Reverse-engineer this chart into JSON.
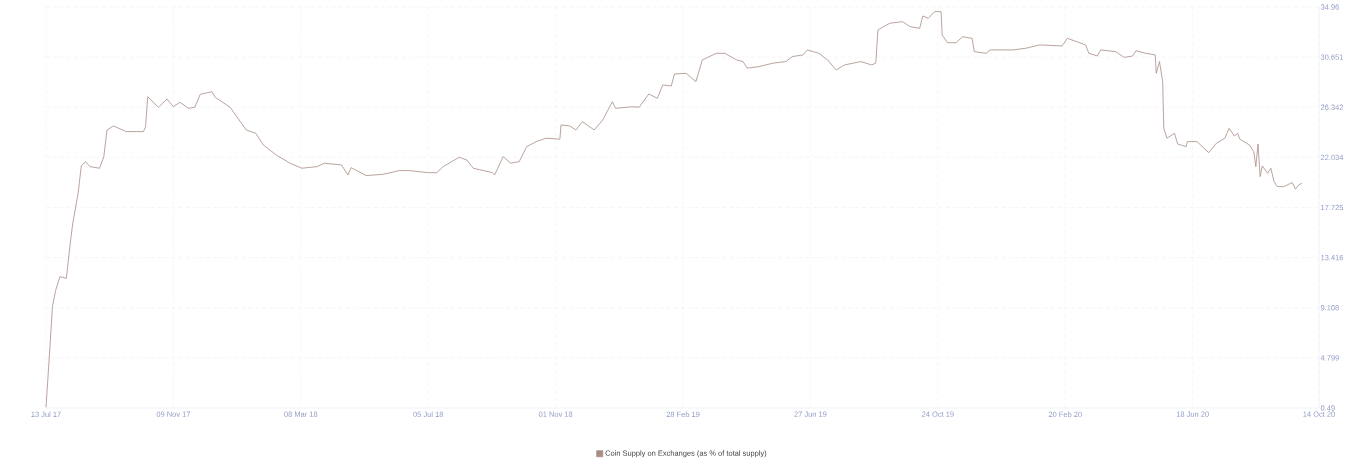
{
  "chart_data": {
    "type": "line",
    "x": [
      "2017-07-13",
      "2017-07-17",
      "2017-07-19",
      "2017-07-22",
      "2017-07-26",
      "2017-08-01",
      "2017-08-05",
      "2017-08-07",
      "2017-08-12",
      "2017-08-15",
      "2017-08-19",
      "2017-08-23",
      "2017-09-01",
      "2017-09-05",
      "2017-09-08",
      "2017-09-14",
      "2017-09-26",
      "2017-10-12",
      "2017-10-14",
      "2017-10-16",
      "2017-10-26",
      "2017-11-03",
      "2017-11-09",
      "2017-11-15",
      "2017-11-23",
      "2017-11-29",
      "2017-12-04",
      "2017-12-15",
      "2017-12-18",
      "2018-01-01",
      "2018-01-16",
      "2018-01-25",
      "2018-02-01",
      "2018-02-13",
      "2018-02-26",
      "2018-03-09",
      "2018-03-23",
      "2018-03-30",
      "2018-04-15",
      "2018-04-21",
      "2018-04-24",
      "2018-05-08",
      "2018-05-24",
      "2018-06-08",
      "2018-06-17",
      "2018-07-05",
      "2018-07-13",
      "2018-07-19",
      "2018-08-03",
      "2018-08-10",
      "2018-08-16",
      "2018-09-03",
      "2018-09-05",
      "2018-09-13",
      "2018-09-20",
      "2018-09-28",
      "2018-10-05",
      "2018-10-14",
      "2018-10-23",
      "2018-11-05",
      "2018-11-06",
      "2018-11-14",
      "2018-11-20",
      "2018-11-26",
      "2018-12-07",
      "2018-12-15",
      "2018-12-24",
      "2018-12-27",
      "2019-01-12",
      "2019-01-18",
      "2019-01-27",
      "2019-02-04",
      "2019-02-09",
      "2019-02-17",
      "2019-02-20",
      "2019-03-03",
      "2019-03-12",
      "2019-03-18",
      "2019-03-31",
      "2019-04-08",
      "2019-04-19",
      "2019-04-25",
      "2019-04-29",
      "2019-05-10",
      "2019-05-23",
      "2019-06-04",
      "2019-06-10",
      "2019-06-20",
      "2019-06-24",
      "2019-07-05",
      "2019-07-13",
      "2019-07-21",
      "2019-07-29",
      "2019-08-13",
      "2019-08-23",
      "2019-08-27",
      "2019-08-29",
      "2019-09-06",
      "2019-09-09",
      "2019-09-21",
      "2019-09-28",
      "2019-10-07",
      "2019-10-10",
      "2019-10-15",
      "2019-10-21",
      "2019-10-27",
      "2019-10-28",
      "2019-11-02",
      "2019-11-10",
      "2019-11-16",
      "2019-11-25",
      "2019-11-27",
      "2019-12-08",
      "2019-12-12",
      "2020-01-02",
      "2020-01-14",
      "2020-01-27",
      "2020-02-17",
      "2020-02-22",
      "2020-03-10",
      "2020-03-13",
      "2020-03-21",
      "2020-03-24",
      "2020-04-07",
      "2020-04-15",
      "2020-04-23",
      "2020-04-26",
      "2020-05-05",
      "2020-05-14",
      "2020-05-15",
      "2020-05-18",
      "2020-05-21",
      "2020-05-22",
      "2020-05-25",
      "2020-06-01",
      "2020-06-04",
      "2020-06-12",
      "2020-06-13",
      "2020-06-22",
      "2020-07-03",
      "2020-07-10",
      "2020-07-18",
      "2020-07-22",
      "2020-07-27",
      "2020-07-30",
      "2020-08-01",
      "2020-08-10",
      "2020-08-14",
      "2020-08-16",
      "2020-08-18",
      "2020-08-20",
      "2020-08-22",
      "2020-08-27",
      "2020-08-30",
      "2020-09-02",
      "2020-09-05",
      "2020-09-11",
      "2020-09-19",
      "2020-09-22",
      "2020-09-25",
      "2020-09-28"
    ],
    "series": [
      {
        "name": "Coin Supply on Exchanges (as % of total supply)",
        "color": "#a88d84",
        "values": [
          0.55,
          6.19,
          9.2,
          10.6,
          11.78,
          11.64,
          14.93,
          16.37,
          18.95,
          21.32,
          21.66,
          21.24,
          21.1,
          22.1,
          24.39,
          24.73,
          24.25,
          24.25,
          24.67,
          27.25,
          26.34,
          27.05,
          26.39,
          26.77,
          26.25,
          26.34,
          27.45,
          27.68,
          27.2,
          26.34,
          24.39,
          24.1,
          23.1,
          22.24,
          21.53,
          21.1,
          21.24,
          21.53,
          21.38,
          20.52,
          21.15,
          20.47,
          20.58,
          20.9,
          20.9,
          20.72,
          20.72,
          21.24,
          22.05,
          21.81,
          21.1,
          20.72,
          20.52,
          22.1,
          21.53,
          21.67,
          22.96,
          23.39,
          23.68,
          23.6,
          24.82,
          24.73,
          24.39,
          25.1,
          24.39,
          25.25,
          26.82,
          26.25,
          26.39,
          26.34,
          27.48,
          27.11,
          28.26,
          28.17,
          29.2,
          29.26,
          28.54,
          30.41,
          30.98,
          30.98,
          30.41,
          30.27,
          29.7,
          29.84,
          30.13,
          30.27,
          30.7,
          30.84,
          31.27,
          30.98,
          30.41,
          29.55,
          29.98,
          30.27,
          29.98,
          30.13,
          32.98,
          33.41,
          33.56,
          33.7,
          33.27,
          33.13,
          34.19,
          33.99,
          34.56,
          34.56,
          32.55,
          31.89,
          31.89,
          32.4,
          32.27,
          31.12,
          30.98,
          31.27,
          31.27,
          31.41,
          31.7,
          31.61,
          32.27,
          31.7,
          30.98,
          30.75,
          31.27,
          31.12,
          30.63,
          30.75,
          31.2,
          30.98,
          30.84,
          29.26,
          30.27,
          28.54,
          24.53,
          23.68,
          24.1,
          23.18,
          22.96,
          23.39,
          23.39,
          22.44,
          23.24,
          23.68,
          24.53,
          23.87,
          24.1,
          23.6,
          23.1,
          22.53,
          21.24,
          23.18,
          20.38,
          21.3,
          20.67,
          21.1,
          19.95,
          19.52,
          19.52,
          19.87,
          19.3,
          19.66,
          19.81
        ]
      }
    ],
    "xlim": [
      "2017-07-13",
      "2020-10-14"
    ],
    "xticks": [
      {
        "value": "2017-07-13",
        "label": "13 Jul 17"
      },
      {
        "value": "2017-11-09",
        "label": "09 Nov 17"
      },
      {
        "value": "2018-03-08",
        "label": "08 Mar 18"
      },
      {
        "value": "2018-07-05",
        "label": "05 Jul 18"
      },
      {
        "value": "2018-11-01",
        "label": "01 Nov 18"
      },
      {
        "value": "2019-02-28",
        "label": "28 Feb 19"
      },
      {
        "value": "2019-06-27",
        "label": "27 Jun 19"
      },
      {
        "value": "2019-10-24",
        "label": "24 Oct 19"
      },
      {
        "value": "2020-02-20",
        "label": "20 Feb 20"
      },
      {
        "value": "2020-06-18",
        "label": "18 Jun 20"
      },
      {
        "value": "2020-10-14",
        "label": "14 Oct 20"
      }
    ],
    "ylim": [
      0.49,
      34.96
    ],
    "yticks": [
      0.49,
      4.799,
      9.108,
      13.416,
      17.725,
      22.034,
      26.342,
      30.651,
      34.96
    ],
    "grid": true,
    "legend": "bottom",
    "marker": "none",
    "line_style": "solid"
  }
}
